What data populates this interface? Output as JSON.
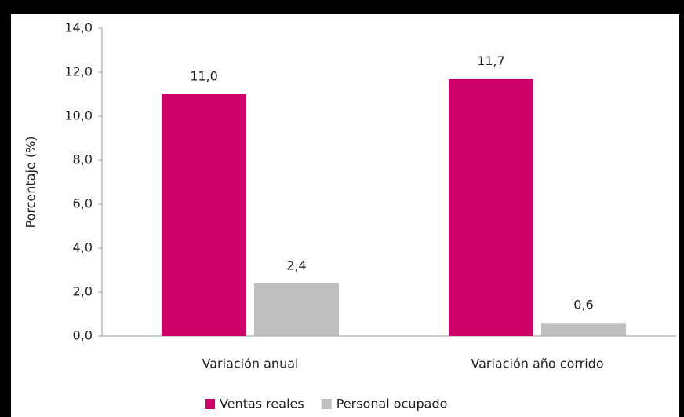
{
  "chart_data": {
    "type": "bar",
    "y_label": "Porcentaje (%)",
    "categories": [
      "Variación anual",
      "Variación año corrido"
    ],
    "series": [
      {
        "name": "Ventas reales",
        "color": "#cc0066",
        "values": [
          11.0,
          11.7
        ],
        "value_labels": [
          "11,0",
          "11,7"
        ]
      },
      {
        "name": "Personal ocupado",
        "color": "#bfbfbf",
        "values": [
          2.4,
          0.6
        ],
        "value_labels": [
          "2,4",
          "0,6"
        ]
      }
    ],
    "ylim": [
      0,
      14
    ],
    "yticks": [
      {
        "value": 0,
        "label": "0,0"
      },
      {
        "value": 2,
        "label": "2,0"
      },
      {
        "value": 4,
        "label": "4,0"
      },
      {
        "value": 6,
        "label": "6,0"
      },
      {
        "value": 8,
        "label": "8,0"
      },
      {
        "value": 10,
        "label": "10,0"
      },
      {
        "value": 12,
        "label": "12,0"
      },
      {
        "value": 14,
        "label": "14,0"
      }
    ],
    "grid": false,
    "legend": "bottom"
  }
}
